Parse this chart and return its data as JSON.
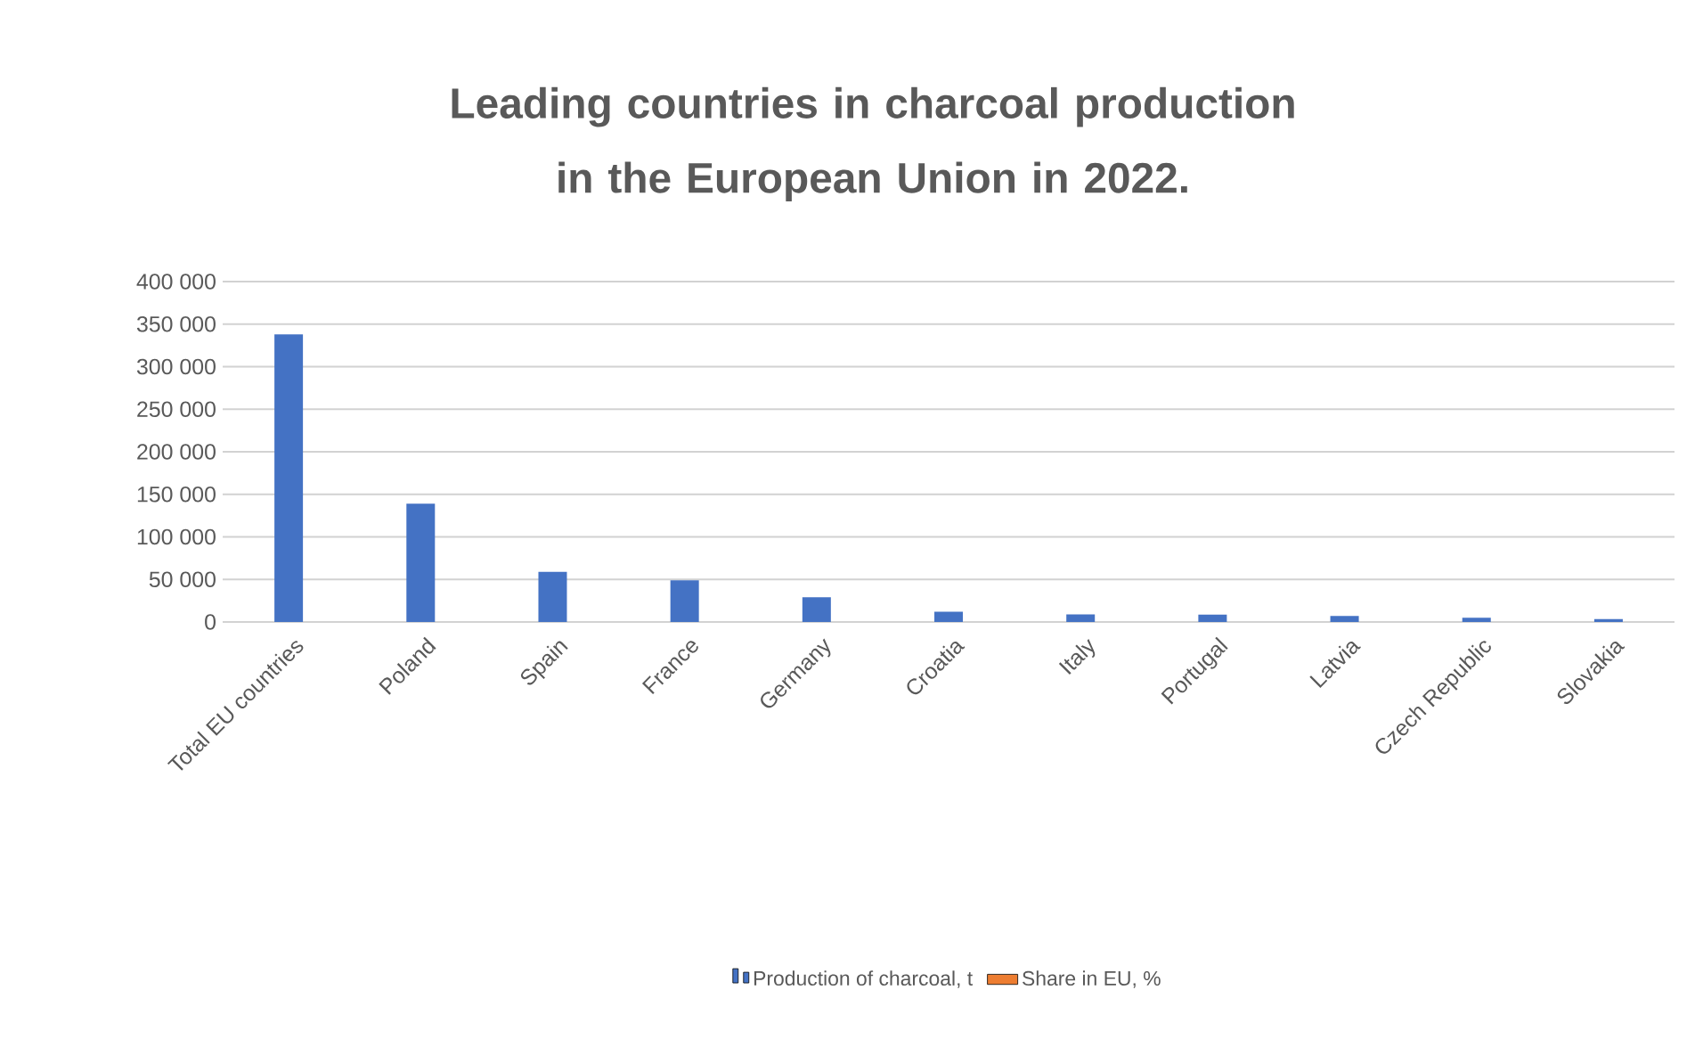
{
  "chart_data": {
    "type": "bar",
    "title": "Leading countries in charcoal production in the European Union in 2022.",
    "categories": [
      "Total EU countries",
      "Poland",
      "Spain",
      "France",
      "Germany",
      "Croatia",
      "Italy",
      "Portugal",
      "Latvia",
      "Czech Republic",
      "Slovakia"
    ],
    "series": [
      {
        "name": "Production of charcoal, t",
        "color": "#4472c4",
        "values": [
          338000,
          139000,
          59000,
          49000,
          29000,
          12000,
          9000,
          8500,
          7000,
          5000,
          3500
        ]
      },
      {
        "name": "Share in EU, %",
        "color": "#ed7d31",
        "values": [
          null,
          null,
          null,
          null,
          null,
          null,
          null,
          null,
          null,
          null,
          null
        ]
      }
    ],
    "ylim": [
      0,
      400000
    ],
    "yticks": [
      0,
      {
        "value": 50000,
        "label": "50 000"
      },
      {
        "value": 100000,
        "label": "100 000"
      },
      {
        "value": 150000,
        "label": "150 000"
      },
      {
        "value": 200000,
        "label": "200 000"
      },
      {
        "value": 250000,
        "label": "250 000"
      },
      {
        "value": 300000,
        "label": "300 000"
      },
      {
        "value": 350000,
        "label": "350 000"
      },
      {
        "value": 400000,
        "label": "400 000"
      }
    ],
    "grid": "y",
    "legend": "bottom"
  }
}
